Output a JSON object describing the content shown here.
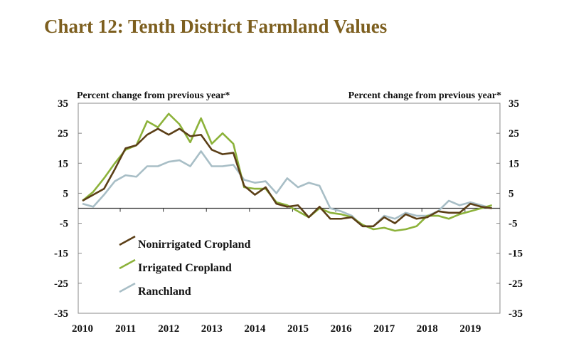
{
  "title": "Chart 12: Tenth District Farmland Values",
  "chart_data": {
    "type": "line",
    "ylabel_left": "Percent change from previous year*",
    "ylabel_right": "Percent change from previous year*",
    "ylim": [
      -35,
      35
    ],
    "yticks": [
      35,
      25,
      15,
      5,
      -5,
      -15,
      -25,
      -35
    ],
    "xticks": [
      "2010",
      "2011",
      "2012",
      "2013",
      "2014",
      "2015",
      "2016",
      "2017",
      "2018",
      "2019"
    ],
    "x_start": "2010 Q1",
    "frequency": "quarterly",
    "legend": "bottom-left",
    "grid": false,
    "series": [
      {
        "name": "Nonirrigated Cropland",
        "color": "#5b3f17",
        "values": [
          2.5,
          4.5,
          6.5,
          13,
          20,
          21,
          24.5,
          26.5,
          24.5,
          26.5,
          24,
          24.5,
          19.5,
          18,
          18.5,
          7.5,
          4.5,
          7,
          1.5,
          0.5,
          1,
          -3,
          0.5,
          -3.5,
          -3.5,
          -3,
          -6,
          -6,
          -3,
          -5,
          -2,
          -3.5,
          -3,
          -1,
          -1.5,
          -1.5,
          1.5,
          0.5,
          0
        ]
      },
      {
        "name": "Irrigated Cropland",
        "color": "#8cb23a",
        "values": [
          2.5,
          5.5,
          10,
          15,
          19.5,
          21,
          29,
          27,
          31.5,
          28,
          22,
          30,
          21.5,
          25,
          21.5,
          7,
          6.5,
          6.5,
          2,
          1,
          -1,
          -3,
          0,
          -1.5,
          -2,
          -3,
          -5.5,
          -7,
          -6.5,
          -7.5,
          -7,
          -6,
          -2.5,
          -2.5,
          -3.5,
          -2,
          -1,
          0,
          1
        ]
      },
      {
        "name": "Ranchland",
        "color": "#a8bec6",
        "values": [
          1.5,
          0.5,
          4.5,
          9,
          11,
          10.5,
          14,
          14,
          15.5,
          16,
          14,
          19,
          14,
          14,
          14.5,
          9.5,
          8.5,
          9,
          5,
          10,
          7,
          8.5,
          7.5,
          0,
          -1,
          -2.5,
          -6,
          -6,
          -2.5,
          -3.5,
          -1.5,
          -2.5,
          -2.5,
          -1,
          2.5,
          1,
          2,
          1,
          0
        ]
      }
    ]
  }
}
